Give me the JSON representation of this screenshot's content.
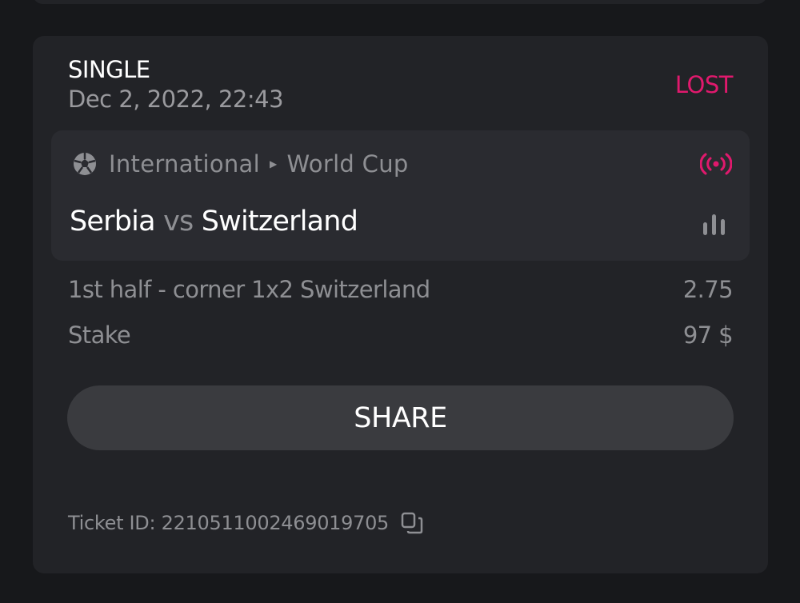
{
  "bet": {
    "type": "SINGLE",
    "date": "Dec 2, 2022, 22:43",
    "status": "LOST",
    "status_color": "#e0196d",
    "event": {
      "sport_icon": "soccer-ball-icon",
      "category": "International",
      "league": "World Cup",
      "live_icon": "live-broadcast-icon",
      "home": "Serbia",
      "vs": "vs",
      "away": "Switzerland",
      "stats_icon": "bar-chart-icon"
    },
    "selection": "1st half - corner 1x2 Switzerland",
    "odds": "2.75",
    "stake_label": "Stake",
    "stake_value": "97 $",
    "share_label": "SHARE",
    "ticket_label": "Ticket ID: 2210511002469019705",
    "copy_icon": "copy-icon"
  }
}
